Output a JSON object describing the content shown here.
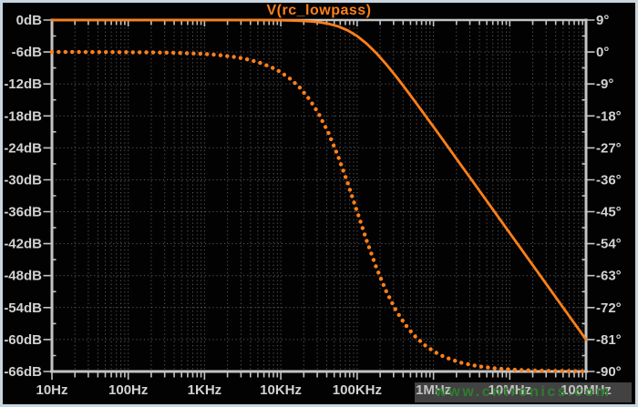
{
  "window": {
    "frame_color": "#c9d6e0",
    "plot_background": "#020202",
    "grid_color": "#5a5a5a",
    "axis_color": "#c4c4c4",
    "label_color": "#d2d2d2"
  },
  "chart_data": {
    "type": "line",
    "title": "V(rc_lowpass)",
    "title_color": "#ff8019",
    "x_axis": {
      "scale": "log",
      "tick_labels": [
        "10Hz",
        "100Hz",
        "1KHz",
        "10KHz",
        "100KHz",
        "1MHz",
        "10MHz",
        "100MHz"
      ],
      "tick_log_values": [
        1,
        2,
        3,
        4,
        5,
        6,
        7,
        8
      ],
      "range_log": [
        1,
        8
      ],
      "minor_ticks_per_decade": [
        2,
        3,
        4,
        5,
        6,
        7,
        8,
        9
      ],
      "grid": "dotted"
    },
    "y_left_axis": {
      "unit": "dB",
      "tick_labels": [
        "0dB",
        "-6dB",
        "-12dB",
        "-18dB",
        "-24dB",
        "-30dB",
        "-36dB",
        "-42dB",
        "-48dB",
        "-54dB",
        "-60dB",
        "-66dB"
      ],
      "tick_values": [
        0,
        -6,
        -12,
        -18,
        -24,
        -30,
        -36,
        -42,
        -48,
        -54,
        -60,
        -66
      ],
      "range": [
        -66,
        0
      ],
      "grid": "dotted"
    },
    "y_right_axis": {
      "unit": "deg",
      "tick_labels": [
        "9°",
        "0°",
        "-9°",
        "-18°",
        "-27°",
        "-36°",
        "-45°",
        "-54°",
        "-63°",
        "-72°",
        "-81°",
        "-90°"
      ],
      "tick_values": [
        9,
        0,
        -9,
        -18,
        -27,
        -36,
        -45,
        -54,
        -63,
        -72,
        -81,
        -90
      ],
      "range": [
        -90,
        9
      ]
    },
    "log_f": [
      1,
      1.125,
      1.25,
      1.375,
      1.5,
      1.625,
      1.75,
      1.875,
      2,
      2.125,
      2.25,
      2.375,
      2.5,
      2.625,
      2.75,
      2.875,
      3,
      3.125,
      3.25,
      3.375,
      3.5,
      3.625,
      3.75,
      3.875,
      4,
      4.125,
      4.25,
      4.375,
      4.5,
      4.625,
      4.75,
      4.875,
      5,
      5.125,
      5.25,
      5.375,
      5.5,
      5.625,
      5.75,
      5.875,
      6,
      6.125,
      6.25,
      6.375,
      6.5,
      6.625,
      6.75,
      6.875,
      7,
      7.125,
      7.25,
      7.375,
      7.5,
      7.625,
      7.75,
      7.875,
      8
    ],
    "series": [
      {
        "name": "magnitude",
        "axis": "y_left",
        "style": "solid",
        "color": "#ff8019",
        "values_db": [
          0,
          0,
          0,
          0,
          0,
          0,
          0,
          0,
          0,
          0,
          0,
          0,
          0,
          0,
          0,
          0,
          0,
          0,
          0,
          0,
          0,
          -0.01,
          -0.01,
          -0.02,
          -0.04,
          -0.08,
          -0.14,
          -0.24,
          -0.41,
          -0.71,
          -1.19,
          -1.94,
          -3.01,
          -4.44,
          -6.19,
          -8.21,
          -10.41,
          -12.74,
          -15.14,
          -17.58,
          -20.04,
          -22.52,
          -25.01,
          -27.51,
          -30,
          -32.5,
          -35,
          -37.5,
          -40,
          -42.5,
          -45,
          -47.5,
          -50,
          -52.5,
          -55,
          -57.5,
          -60
        ]
      },
      {
        "name": "phase",
        "axis": "y_right",
        "style": "dotted",
        "color": "#ff8019",
        "values_deg": [
          -0.01,
          -0.01,
          -0.01,
          -0.01,
          -0.02,
          -0.02,
          -0.03,
          -0.04,
          -0.06,
          -0.08,
          -0.1,
          -0.14,
          -0.18,
          -0.24,
          -0.32,
          -0.43,
          -0.57,
          -0.76,
          -1.02,
          -1.36,
          -1.81,
          -2.41,
          -3.22,
          -4.28,
          -5.71,
          -7.6,
          -10.08,
          -13.34,
          -17.55,
          -22.86,
          -29.36,
          -36.87,
          -45,
          -53.13,
          -60.64,
          -67.14,
          -72.45,
          -76.66,
          -79.92,
          -82.4,
          -84.29,
          -85.71,
          -86.78,
          -87.58,
          -88.19,
          -88.64,
          -88.98,
          -89.23,
          -89.43,
          -89.57,
          -89.68,
          -89.76,
          -89.82,
          -89.86,
          -89.9,
          -89.92,
          -89.94
        ]
      }
    ],
    "legend": "none"
  },
  "watermark": {
    "text": "www.cntronics.com",
    "text_color": "#2f7d2f",
    "box_color": "rgba(170,170,170,0.38)"
  }
}
